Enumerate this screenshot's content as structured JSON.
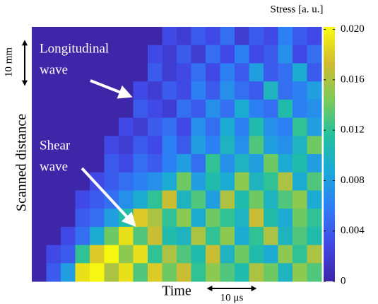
{
  "chart_data": {
    "type": "heatmap",
    "colorbar_label": "Stress [a. u.]",
    "xlabel": "Time",
    "ylabel": "Scanned distance",
    "annotations": [
      {
        "lines": [
          "Longitudinal",
          "wave"
        ]
      },
      {
        "lines": [
          "Shear",
          "wave"
        ]
      }
    ],
    "scale_bars": [
      {
        "label": "10 mm"
      },
      {
        "label": "10 μs"
      }
    ],
    "colormap": [
      "#3e26a8",
      "#4147e5",
      "#2f7cf6",
      "#1ba8d9",
      "#22c0a0",
      "#7ccb58",
      "#d2bb30",
      "#f9fb0e"
    ],
    "zlim": [
      0,
      0.0202
    ],
    "zticks": [
      0,
      {
        "value": 0.004,
        "label": "0.004"
      },
      {
        "value": 0.008,
        "label": "0.008"
      },
      {
        "value": 0.012,
        "label": "0.012"
      },
      {
        "value": 0.016,
        "label": "0.016"
      },
      {
        "value": 0.02,
        "label": "0.020"
      }
    ],
    "z": [
      [
        0,
        0,
        0,
        0,
        0,
        0,
        0,
        0,
        0,
        0.003,
        0.002,
        0.004,
        0.003,
        0.005,
        0.002,
        0.004,
        0.003,
        0.006,
        0.004,
        0.003
      ],
      [
        0,
        0,
        0,
        0,
        0,
        0,
        0,
        0,
        0.003,
        0.002,
        0.004,
        0.002,
        0.005,
        0.003,
        0.006,
        0.003,
        0.004,
        0.007,
        0.003,
        0.005
      ],
      [
        0,
        0,
        0,
        0,
        0,
        0,
        0,
        0,
        0.004,
        0.002,
        0.003,
        0.005,
        0.003,
        0.006,
        0.004,
        0.008,
        0.004,
        0.005,
        0.009,
        0.004
      ],
      [
        0,
        0,
        0,
        0,
        0,
        0,
        0,
        0.003,
        0.002,
        0.004,
        0.003,
        0.006,
        0.004,
        0.007,
        0.005,
        0.004,
        0.01,
        0.005,
        0.006,
        0.008
      ],
      [
        0,
        0,
        0,
        0,
        0,
        0,
        0,
        0.004,
        0.003,
        0.002,
        0.005,
        0.004,
        0.007,
        0.005,
        0.009,
        0.006,
        0.005,
        0.011,
        0.006,
        0.007
      ],
      [
        0,
        0,
        0,
        0,
        0,
        0,
        0.003,
        0.002,
        0.004,
        0.005,
        0.003,
        0.007,
        0.005,
        0.009,
        0.006,
        0.011,
        0.007,
        0.006,
        0.012,
        0.008
      ],
      [
        0,
        0,
        0,
        0,
        0,
        0.003,
        0.002,
        0.004,
        0.003,
        0.006,
        0.004,
        0.008,
        0.006,
        0.01,
        0.007,
        0.013,
        0.008,
        0.007,
        0.01,
        0.014
      ],
      [
        0,
        0,
        0,
        0,
        0,
        0.004,
        0.003,
        0.005,
        0.004,
        0.006,
        0.008,
        0.005,
        0.012,
        0.007,
        0.01,
        0.008,
        0.014,
        0.009,
        0.011,
        0.008
      ],
      [
        0,
        0,
        0,
        0,
        0.003,
        0.004,
        0.005,
        0.006,
        0.007,
        0.009,
        0.014,
        0.008,
        0.011,
        0.009,
        0.015,
        0.01,
        0.012,
        0.016,
        0.009,
        0.013
      ],
      [
        0,
        0,
        0,
        0.003,
        0.004,
        0.005,
        0.007,
        0.009,
        0.012,
        0.017,
        0.01,
        0.013,
        0.008,
        0.016,
        0.011,
        0.014,
        0.01,
        0.013,
        0.015,
        0.009
      ],
      [
        0,
        0,
        0,
        0.004,
        0.005,
        0.008,
        0.011,
        0.018,
        0.016,
        0.012,
        0.015,
        0.009,
        0.014,
        0.012,
        0.01,
        0.017,
        0.011,
        0.009,
        0.014,
        0.012
      ],
      [
        0,
        0,
        0.003,
        0.005,
        0.009,
        0.014,
        0.019,
        0.013,
        0.017,
        0.011,
        0.01,
        0.016,
        0.012,
        0.015,
        0.009,
        0.012,
        0.016,
        0.01,
        0.013,
        0.011
      ],
      [
        0,
        0.003,
        0.004,
        0.012,
        0.018,
        0.02,
        0.015,
        0.019,
        0.012,
        0.016,
        0.013,
        0.011,
        0.017,
        0.01,
        0.014,
        0.011,
        0.009,
        0.015,
        0.012,
        0.016
      ],
      [
        0,
        0.004,
        0.008,
        0.019,
        0.02,
        0.016,
        0.019,
        0.013,
        0.018,
        0.014,
        0.017,
        0.012,
        0.015,
        0.013,
        0.011,
        0.016,
        0.014,
        0.01,
        0.015,
        0.013
      ]
    ]
  }
}
